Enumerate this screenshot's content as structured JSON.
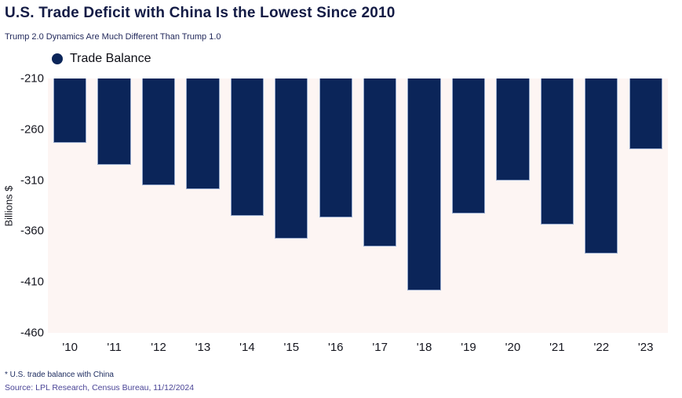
{
  "header": {
    "title": "U.S. Trade Deficit with China Is the Lowest Since 2010",
    "subtitle": "Trump 2.0 Dynamics Are Much Different Than Trump 1.0"
  },
  "legend": {
    "marker": "circle-icon",
    "label": "Trade Balance"
  },
  "chart_data": {
    "type": "bar",
    "title": "U.S. Trade Deficit with China Is the Lowest Since 2010",
    "subtitle": "Trump 2.0 Dynamics Are Much Different Than Trump 1.0",
    "categories": [
      "'10",
      "'11",
      "'12",
      "'13",
      "'14",
      "'15",
      "'16",
      "'17",
      "'18",
      "'19",
      "'20",
      "'21",
      "'22",
      "'23"
    ],
    "series": [
      {
        "name": "Trade Balance",
        "values": [
          -273.0,
          -295.2,
          -315.0,
          -318.7,
          -344.8,
          -367.3,
          -346.8,
          -375.2,
          -418.2,
          -342.6,
          -310.3,
          -353.5,
          -382.3,
          -279.4
        ]
      }
    ],
    "xlabel": "",
    "ylabel": "Billions $",
    "yticks": [
      -210,
      -260,
      -310,
      -360,
      -410,
      -460
    ],
    "ylim": [
      -460,
      -210
    ],
    "bars_anchored_at_top": true,
    "grid": false,
    "legend_position": "top-left",
    "colors": {
      "bar_fill": "#0b2559",
      "bar_border": "#96a9cc",
      "plot_background": "#fdf5f3",
      "title_text": "#131b45",
      "axis_text": "#15161f",
      "source_text": "#4a4496"
    }
  },
  "footer": {
    "note": "* U.S. trade balance with China",
    "source": "Source: LPL Research, Census Bureau, 11/12/2024"
  }
}
